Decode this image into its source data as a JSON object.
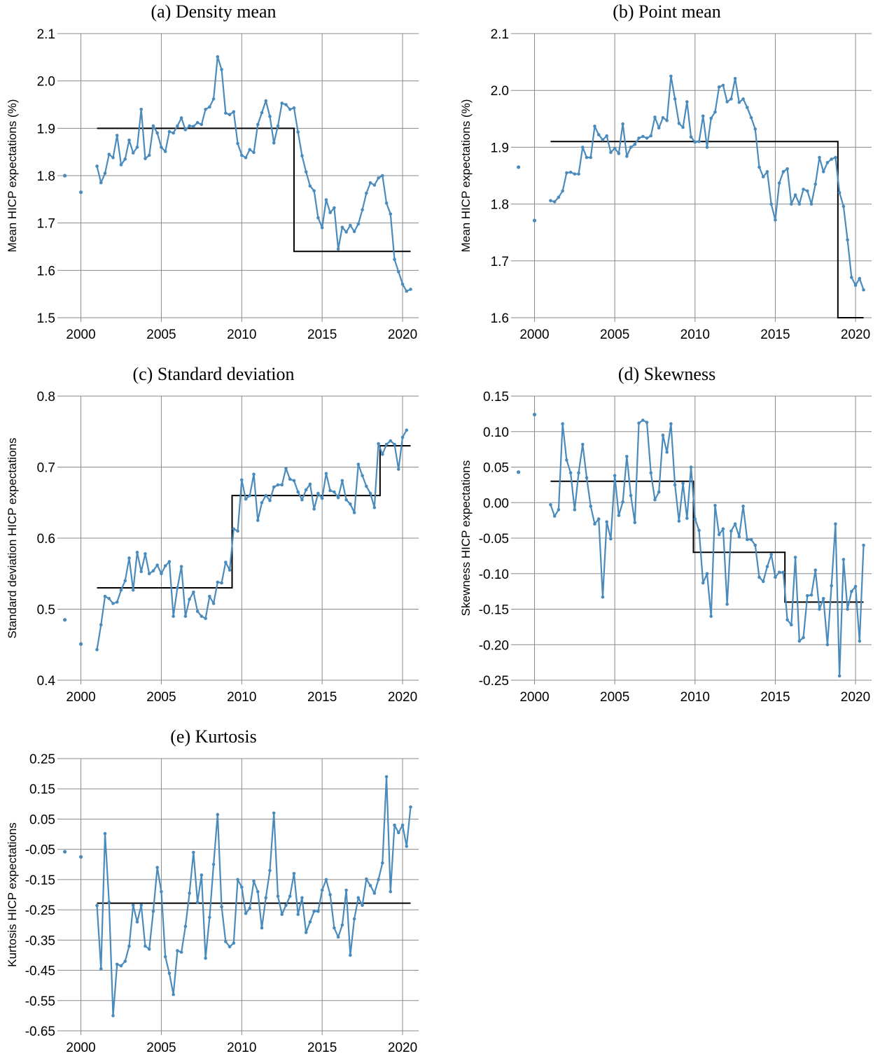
{
  "chart_data": [
    {
      "type": "line",
      "title": "(a) Density mean",
      "xlabel": "",
      "ylabel": "Mean HICP expectations (%)",
      "xlim": [
        1998.8,
        2021.0
      ],
      "ylim": [
        1.5,
        2.1
      ],
      "yticks": [
        "1.5",
        "1.6",
        "1.7",
        "1.8",
        "1.9",
        "2.0",
        "2.1"
      ],
      "xticks": [
        "2000",
        "2005",
        "2010",
        "2015",
        "2020"
      ],
      "grid": true,
      "series_color": "#4a8bbd",
      "step_color": "#000000",
      "isolated_points": [
        [
          1999.0,
          1.8
        ],
        [
          2000.0,
          1.765
        ]
      ],
      "x_start": 2001.0,
      "x_step": 0.25,
      "values": [
        1.82,
        1.785,
        1.805,
        1.845,
        1.838,
        1.885,
        1.823,
        1.835,
        1.875,
        1.848,
        1.86,
        1.94,
        1.836,
        1.843,
        1.905,
        1.89,
        1.86,
        1.851,
        1.893,
        1.89,
        1.905,
        1.922,
        1.897,
        1.905,
        1.904,
        1.912,
        1.908,
        1.94,
        1.945,
        1.962,
        2.051,
        2.024,
        1.932,
        1.929,
        1.935,
        1.868,
        1.843,
        1.838,
        1.855,
        1.849,
        1.908,
        1.933,
        1.958,
        1.925,
        1.869,
        1.905,
        1.953,
        1.95,
        1.94,
        1.943,
        1.892,
        1.842,
        1.808,
        1.778,
        1.768,
        1.711,
        1.69,
        1.749,
        1.722,
        1.732,
        1.645,
        1.691,
        1.681,
        1.695,
        1.682,
        1.698,
        1.728,
        1.763,
        1.785,
        1.78,
        1.795,
        1.8,
        1.742,
        1.719,
        1.623,
        1.597,
        1.571,
        1.556,
        1.56
      ],
      "steps": [
        [
          2001.0,
          2013.25,
          1.9
        ],
        [
          2013.25,
          2020.5,
          1.64
        ]
      ]
    },
    {
      "type": "line",
      "title": "(b) Point mean",
      "xlabel": "",
      "ylabel": "Mean HICP expectations (%)",
      "xlim": [
        1998.8,
        2021.0
      ],
      "ylim": [
        1.6,
        2.1
      ],
      "yticks": [
        "1.6",
        "1.7",
        "1.8",
        "1.9",
        "2.0",
        "2.1"
      ],
      "xticks": [
        "2000",
        "2005",
        "2010",
        "2015",
        "2020"
      ],
      "grid": true,
      "series_color": "#4a8bbd",
      "step_color": "#000000",
      "isolated_points": [
        [
          1999.0,
          1.865
        ],
        [
          2000.0,
          1.771
        ]
      ],
      "x_start": 2001.0,
      "x_step": 0.25,
      "values": [
        1.806,
        1.804,
        1.812,
        1.823,
        1.855,
        1.856,
        1.853,
        1.853,
        1.9,
        1.882,
        1.882,
        1.937,
        1.922,
        1.913,
        1.92,
        1.891,
        1.898,
        1.889,
        1.941,
        1.884,
        1.9,
        1.905,
        1.916,
        1.919,
        1.916,
        1.92,
        1.953,
        1.934,
        1.952,
        1.947,
        2.025,
        1.985,
        1.942,
        1.935,
        1.98,
        1.918,
        1.909,
        1.91,
        1.955,
        1.9,
        1.951,
        1.962,
        2.006,
        2.009,
        1.98,
        1.985,
        2.021,
        1.979,
        1.985,
        1.97,
        1.952,
        1.932,
        1.865,
        1.848,
        1.857,
        1.8,
        1.772,
        1.837,
        1.857,
        1.862,
        1.8,
        1.816,
        1.8,
        1.826,
        1.823,
        1.8,
        1.835,
        1.882,
        1.857,
        1.873,
        1.879,
        1.882,
        1.82,
        1.796,
        1.737,
        1.671,
        1.657,
        1.669,
        1.649
      ],
      "steps": [
        [
          2001.0,
          2018.9,
          1.91
        ],
        [
          2018.9,
          2020.5,
          1.6
        ]
      ]
    },
    {
      "type": "line",
      "title": "(c) Standard deviation",
      "xlabel": "",
      "ylabel": "Standard deviation HICP expectations",
      "xlim": [
        1998.8,
        2021.0
      ],
      "ylim": [
        0.4,
        0.8
      ],
      "yticks": [
        "0.4",
        "0.5",
        "0.6",
        "0.7",
        "0.8"
      ],
      "xticks": [
        "2000",
        "2005",
        "2010",
        "2015",
        "2020"
      ],
      "grid": true,
      "series_color": "#4a8bbd",
      "step_color": "#000000",
      "isolated_points": [
        [
          1999.0,
          0.485
        ],
        [
          2000.0,
          0.451
        ]
      ],
      "x_start": 2001.0,
      "x_step": 0.25,
      "values": [
        0.443,
        0.478,
        0.518,
        0.515,
        0.508,
        0.51,
        0.527,
        0.54,
        0.572,
        0.527,
        0.58,
        0.553,
        0.578,
        0.55,
        0.554,
        0.562,
        0.55,
        0.561,
        0.567,
        0.49,
        0.53,
        0.56,
        0.49,
        0.514,
        0.524,
        0.497,
        0.49,
        0.487,
        0.518,
        0.508,
        0.538,
        0.537,
        0.566,
        0.555,
        0.613,
        0.61,
        0.682,
        0.655,
        0.66,
        0.69,
        0.625,
        0.65,
        0.66,
        0.653,
        0.672,
        0.675,
        0.675,
        0.698,
        0.683,
        0.681,
        0.665,
        0.654,
        0.668,
        0.676,
        0.641,
        0.663,
        0.656,
        0.691,
        0.667,
        0.665,
        0.657,
        0.681,
        0.654,
        0.648,
        0.636,
        0.704,
        0.688,
        0.673,
        0.663,
        0.643,
        0.733,
        0.718,
        0.732,
        0.737,
        0.732,
        0.697,
        0.742,
        0.752
      ],
      "steps": [
        [
          2001.0,
          2009.4,
          0.53
        ],
        [
          2009.4,
          2018.6,
          0.66
        ],
        [
          2018.6,
          2020.5,
          0.73
        ]
      ]
    },
    {
      "type": "line",
      "title": "(d) Skewness",
      "xlabel": "",
      "ylabel": "Skewness HICP expectations",
      "xlim": [
        1998.8,
        2021.0
      ],
      "ylim": [
        -0.25,
        0.15
      ],
      "yticks": [
        "-0.25",
        "-0.20",
        "-0.15",
        "-0.10",
        "-0.05",
        "0.00",
        "0.05",
        "0.10",
        "0.15"
      ],
      "xticks": [
        "2000",
        "2005",
        "2010",
        "2015",
        "2020"
      ],
      "grid": true,
      "series_color": "#4a8bbd",
      "step_color": "#000000",
      "isolated_points": [
        [
          1999.0,
          0.043
        ],
        [
          2000.0,
          0.124
        ]
      ],
      "x_start": 2001.0,
      "x_step": 0.25,
      "values": [
        -0.003,
        -0.019,
        -0.01,
        0.111,
        0.06,
        0.042,
        -0.01,
        0.042,
        0.082,
        0.035,
        -0.005,
        -0.03,
        -0.023,
        -0.133,
        -0.027,
        -0.051,
        0.038,
        -0.018,
        0.001,
        0.065,
        0.01,
        -0.028,
        0.112,
        0.116,
        0.113,
        0.042,
        0.004,
        0.015,
        0.095,
        0.071,
        0.111,
        0.025,
        -0.026,
        0.027,
        -0.022,
        0.05,
        -0.023,
        -0.039,
        -0.113,
        -0.1,
        -0.16,
        -0.004,
        -0.045,
        -0.037,
        -0.143,
        -0.04,
        -0.03,
        -0.048,
        -0.005,
        -0.052,
        -0.052,
        -0.06,
        -0.105,
        -0.111,
        -0.09,
        -0.073,
        -0.105,
        -0.098,
        -0.098,
        -0.165,
        -0.172,
        -0.077,
        -0.195,
        -0.19,
        -0.131,
        -0.13,
        -0.095,
        -0.15,
        -0.135,
        -0.2,
        -0.117,
        -0.03,
        -0.244,
        -0.08,
        -0.15,
        -0.125,
        -0.118,
        -0.195,
        -0.06
      ],
      "steps": [
        [
          2001.0,
          2009.9,
          0.03
        ],
        [
          2009.9,
          2015.6,
          -0.07
        ],
        [
          2015.6,
          2020.5,
          -0.14
        ]
      ]
    },
    {
      "type": "line",
      "title": "(e) Kurtosis",
      "xlabel": "",
      "ylabel": "Kurtosis HICP expectations",
      "xlim": [
        1998.8,
        2021.0
      ],
      "ylim": [
        -0.65,
        0.25
      ],
      "yticks": [
        "-0.65",
        "-0.55",
        "-0.45",
        "-0.35",
        "-0.25",
        "-0.15",
        "-0.05",
        "0.05",
        "0.15",
        "0.25"
      ],
      "xticks": [
        "2000",
        "2005",
        "2010",
        "2015",
        "2020"
      ],
      "grid": true,
      "series_color": "#4a8bbd",
      "step_color": "#000000",
      "isolated_points": [
        [
          1999.0,
          -0.058
        ],
        [
          2000.0,
          -0.075
        ]
      ],
      "x_start": 2001.0,
      "x_step": 0.25,
      "values": [
        -0.236,
        -0.445,
        0.002,
        -0.225,
        -0.6,
        -0.43,
        -0.435,
        -0.42,
        -0.37,
        -0.235,
        -0.29,
        -0.235,
        -0.37,
        -0.38,
        -0.255,
        -0.11,
        -0.19,
        -0.405,
        -0.46,
        -0.53,
        -0.385,
        -0.39,
        -0.305,
        -0.195,
        -0.06,
        -0.225,
        -0.135,
        -0.41,
        -0.275,
        -0.1,
        0.065,
        -0.24,
        -0.355,
        -0.372,
        -0.36,
        -0.15,
        -0.175,
        -0.262,
        -0.245,
        -0.155,
        -0.19,
        -0.31,
        -0.21,
        -0.12,
        0.07,
        -0.205,
        -0.265,
        -0.235,
        -0.205,
        -0.13,
        -0.265,
        -0.21,
        -0.325,
        -0.29,
        -0.255,
        -0.255,
        -0.185,
        -0.15,
        -0.2,
        -0.31,
        -0.34,
        -0.3,
        -0.185,
        -0.4,
        -0.28,
        -0.21,
        -0.235,
        -0.148,
        -0.17,
        -0.195,
        -0.15,
        -0.095,
        0.19,
        -0.19,
        0.03,
        0.005,
        0.03,
        -0.04,
        0.09
      ],
      "steps": [
        [
          2001.0,
          2020.5,
          -0.228
        ]
      ]
    }
  ]
}
